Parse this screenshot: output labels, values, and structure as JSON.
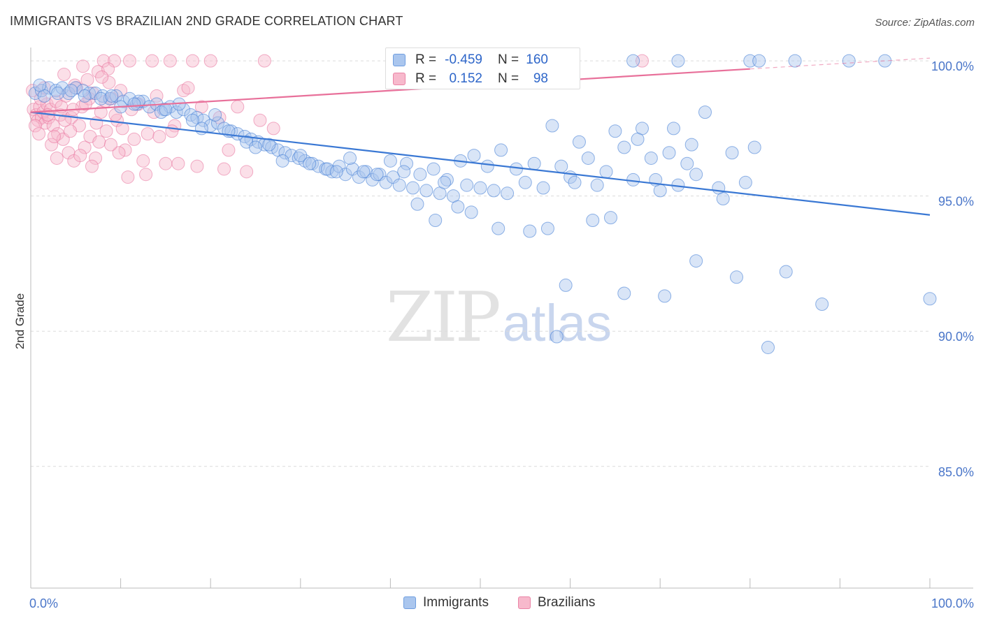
{
  "title": "IMMIGRANTS VS BRAZILIAN 2ND GRADE CORRELATION CHART",
  "source": "Source: ZipAtlas.com",
  "watermark": {
    "zip": "ZIP",
    "atlas": "atlas"
  },
  "legend": {
    "r_label": "R =",
    "n_label": "N =",
    "rows": [
      {
        "name": "Immigrants",
        "r": "-0.459",
        "n": "160",
        "fill": "#aac6ee",
        "stroke": "#6f9ee0"
      },
      {
        "name": "Brazilians",
        "r": "0.152",
        "n": "98",
        "fill": "#f7b9cc",
        "stroke": "#ea84a6"
      }
    ]
  },
  "chart_data": {
    "type": "scatter",
    "title": "IMMIGRANTS VS BRAZILIAN 2ND GRADE CORRELATION CHART",
    "xlabel": "",
    "ylabel": "2nd Grade",
    "xlim": [
      0,
      100
    ],
    "ylim": [
      80.5,
      100.7
    ],
    "x_tick_labels": [
      "0.0%",
      "100.0%"
    ],
    "y_ticks": [
      {
        "value": 100,
        "label": "100.0%"
      },
      {
        "value": 95,
        "label": "95.0%"
      },
      {
        "value": 90,
        "label": "90.0%"
      },
      {
        "value": 85,
        "label": "85.0%"
      }
    ],
    "grid": true,
    "series": [
      {
        "name": "Immigrants",
        "color": "#3a78d4",
        "fill": "#aac6ee",
        "trend": {
          "x": [
            0,
            100
          ],
          "y": [
            98.1,
            94.3
          ],
          "solid_to": 100
        },
        "points": [
          [
            0.5,
            98.8
          ],
          [
            1.2,
            98.9
          ],
          [
            2.0,
            99.0
          ],
          [
            2.8,
            98.9
          ],
          [
            3.5,
            99.0
          ],
          [
            4.2,
            98.8
          ],
          [
            5.0,
            99.0
          ],
          [
            5.8,
            98.9
          ],
          [
            6.5,
            98.8
          ],
          [
            7.2,
            98.8
          ],
          [
            8.0,
            98.7
          ],
          [
            8.8,
            98.6
          ],
          [
            9.5,
            98.7
          ],
          [
            10.3,
            98.5
          ],
          [
            11.0,
            98.6
          ],
          [
            11.8,
            98.4
          ],
          [
            12.5,
            98.5
          ],
          [
            13.2,
            98.3
          ],
          [
            14.0,
            98.4
          ],
          [
            14.8,
            98.2
          ],
          [
            15.5,
            98.3
          ],
          [
            16.2,
            98.1
          ],
          [
            17.0,
            98.2
          ],
          [
            17.8,
            98.0
          ],
          [
            18.5,
            97.9
          ],
          [
            19.2,
            97.8
          ],
          [
            20.0,
            97.6
          ],
          [
            20.8,
            97.7
          ],
          [
            21.5,
            97.5
          ],
          [
            22.3,
            97.4
          ],
          [
            23.0,
            97.3
          ],
          [
            23.8,
            97.2
          ],
          [
            24.5,
            97.1
          ],
          [
            25.3,
            97.0
          ],
          [
            26.0,
            96.9
          ],
          [
            26.8,
            96.8
          ],
          [
            27.5,
            96.7
          ],
          [
            28.3,
            96.6
          ],
          [
            29.0,
            96.5
          ],
          [
            29.8,
            96.4
          ],
          [
            30.5,
            96.3
          ],
          [
            31.3,
            96.2
          ],
          [
            32.0,
            96.1
          ],
          [
            32.8,
            96.0
          ],
          [
            33.5,
            95.9
          ],
          [
            34.3,
            96.1
          ],
          [
            35.0,
            95.8
          ],
          [
            35.8,
            96.0
          ],
          [
            36.5,
            95.7
          ],
          [
            37.3,
            95.9
          ],
          [
            38.0,
            95.6
          ],
          [
            38.8,
            95.8
          ],
          [
            39.5,
            95.5
          ],
          [
            40.3,
            95.7
          ],
          [
            41.0,
            95.4
          ],
          [
            41.8,
            96.2
          ],
          [
            42.5,
            95.3
          ],
          [
            43.3,
            95.8
          ],
          [
            44.0,
            95.2
          ],
          [
            44.8,
            96.0
          ],
          [
            45.5,
            95.1
          ],
          [
            46.3,
            95.6
          ],
          [
            47.0,
            95.0
          ],
          [
            47.8,
            96.3
          ],
          [
            48.5,
            95.4
          ],
          [
            49.3,
            96.5
          ],
          [
            50.0,
            95.3
          ],
          [
            50.8,
            96.1
          ],
          [
            51.5,
            95.2
          ],
          [
            52.3,
            96.7
          ],
          [
            53.0,
            95.1
          ],
          [
            54.0,
            96.0
          ],
          [
            55.0,
            95.5
          ],
          [
            56.0,
            96.2
          ],
          [
            57.0,
            95.3
          ],
          [
            58.0,
            97.6
          ],
          [
            59.0,
            96.1
          ],
          [
            60.0,
            95.7
          ],
          [
            61.0,
            97.0
          ],
          [
            62.0,
            96.4
          ],
          [
            63.0,
            95.4
          ],
          [
            64.0,
            95.9
          ],
          [
            65.0,
            97.4
          ],
          [
            66.0,
            96.8
          ],
          [
            67.0,
            95.6
          ],
          [
            68.0,
            97.5
          ],
          [
            69.0,
            96.4
          ],
          [
            70.0,
            95.2
          ],
          [
            71.0,
            96.6
          ],
          [
            72.0,
            95.4
          ],
          [
            73.0,
            96.2
          ],
          [
            74.0,
            95.8
          ],
          [
            6.0,
            98.7
          ],
          [
            10.0,
            98.3
          ],
          [
            14.5,
            98.1
          ],
          [
            19.0,
            97.5
          ],
          [
            24.0,
            97.0
          ],
          [
            28.0,
            96.3
          ],
          [
            33.0,
            96.0
          ],
          [
            37.0,
            95.9
          ],
          [
            1.5,
            98.7
          ],
          [
            4.5,
            98.9
          ],
          [
            7.8,
            98.6
          ],
          [
            12.0,
            98.5
          ],
          [
            16.5,
            98.4
          ],
          [
            20.5,
            98.0
          ],
          [
            25.0,
            96.8
          ],
          [
            30.0,
            96.5
          ],
          [
            35.5,
            96.4
          ],
          [
            40.0,
            96.3
          ],
          [
            43.0,
            94.7
          ],
          [
            45.0,
            94.1
          ],
          [
            47.5,
            94.6
          ],
          [
            49.0,
            94.4
          ],
          [
            52.0,
            93.8
          ],
          [
            55.5,
            93.7
          ],
          [
            57.5,
            93.8
          ],
          [
            60.5,
            95.5
          ],
          [
            62.5,
            94.1
          ],
          [
            64.5,
            94.2
          ],
          [
            67.5,
            97.1
          ],
          [
            69.5,
            95.6
          ],
          [
            71.5,
            97.5
          ],
          [
            73.5,
            96.9
          ],
          [
            75.0,
            98.1
          ],
          [
            76.5,
            95.3
          ],
          [
            77.0,
            94.9
          ],
          [
            78.0,
            96.6
          ],
          [
            79.5,
            95.5
          ],
          [
            80.5,
            96.8
          ],
          [
            67.0,
            100.0
          ],
          [
            72.0,
            100.0
          ],
          [
            80.0,
            100.0
          ],
          [
            81.0,
            100.0
          ],
          [
            85.0,
            100.0
          ],
          [
            91.0,
            100.0
          ],
          [
            95.0,
            100.0
          ],
          [
            58.5,
            89.8
          ],
          [
            59.5,
            91.7
          ],
          [
            66.0,
            91.4
          ],
          [
            70.5,
            91.3
          ],
          [
            88.0,
            91.0
          ],
          [
            100.0,
            91.2
          ],
          [
            78.5,
            92.0
          ],
          [
            74.0,
            92.6
          ],
          [
            84.0,
            92.2
          ],
          [
            82.0,
            89.4
          ],
          [
            1.0,
            99.1
          ],
          [
            3.0,
            98.8
          ],
          [
            9.0,
            98.7
          ],
          [
            11.5,
            98.4
          ],
          [
            15.0,
            98.2
          ],
          [
            18.0,
            97.8
          ],
          [
            22.0,
            97.4
          ],
          [
            26.5,
            96.9
          ],
          [
            31.0,
            96.2
          ],
          [
            34.0,
            95.9
          ],
          [
            38.5,
            95.8
          ],
          [
            41.5,
            95.9
          ],
          [
            46.0,
            95.5
          ]
        ]
      },
      {
        "name": "Brazilians",
        "color": "#e8709a",
        "fill": "#f7b9cc",
        "trend": {
          "x": [
            0,
            100
          ],
          "y": [
            98.1,
            100.1
          ],
          "solid_to": 80
        },
        "points": [
          [
            0.3,
            98.2
          ],
          [
            0.6,
            98.0
          ],
          [
            0.8,
            97.8
          ],
          [
            1.0,
            98.3
          ],
          [
            1.2,
            97.9
          ],
          [
            1.4,
            98.1
          ],
          [
            1.6,
            97.7
          ],
          [
            1.8,
            98.4
          ],
          [
            2.0,
            97.9
          ],
          [
            2.2,
            98.2
          ],
          [
            2.5,
            97.6
          ],
          [
            2.8,
            98.5
          ],
          [
            3.0,
            97.3
          ],
          [
            3.3,
            98.0
          ],
          [
            3.6,
            97.1
          ],
          [
            3.9,
            98.7
          ],
          [
            4.2,
            96.6
          ],
          [
            4.5,
            97.9
          ],
          [
            4.8,
            96.3
          ],
          [
            5.1,
            99.0
          ],
          [
            5.4,
            97.6
          ],
          [
            5.7,
            98.3
          ],
          [
            6.0,
            96.8
          ],
          [
            6.3,
            99.3
          ],
          [
            6.6,
            97.2
          ],
          [
            6.9,
            98.8
          ],
          [
            7.2,
            96.4
          ],
          [
            7.5,
            99.6
          ],
          [
            7.8,
            98.1
          ],
          [
            8.1,
            100.0
          ],
          [
            8.4,
            97.4
          ],
          [
            8.7,
            99.2
          ],
          [
            9.0,
            98.6
          ],
          [
            9.3,
            100.0
          ],
          [
            9.6,
            97.8
          ],
          [
            10.0,
            98.9
          ],
          [
            10.5,
            96.7
          ],
          [
            11.0,
            100.0
          ],
          [
            11.5,
            97.1
          ],
          [
            12.0,
            98.4
          ],
          [
            12.5,
            96.3
          ],
          [
            13.0,
            97.3
          ],
          [
            13.5,
            100.0
          ],
          [
            14.0,
            98.7
          ],
          [
            15.0,
            96.2
          ],
          [
            15.5,
            100.0
          ],
          [
            16.0,
            97.6
          ],
          [
            17.0,
            98.9
          ],
          [
            18.0,
            100.0
          ],
          [
            18.5,
            96.1
          ],
          [
            20.0,
            100.0
          ],
          [
            21.0,
            97.9
          ],
          [
            22.0,
            96.7
          ],
          [
            23.0,
            98.3
          ],
          [
            26.0,
            100.0
          ],
          [
            27.0,
            97.5
          ],
          [
            1.1,
            98.6
          ],
          [
            2.3,
            96.9
          ],
          [
            3.4,
            98.3
          ],
          [
            4.4,
            97.4
          ],
          [
            5.5,
            96.5
          ],
          [
            6.5,
            98.6
          ],
          [
            7.6,
            97.0
          ],
          [
            8.6,
            99.7
          ],
          [
            9.8,
            96.6
          ],
          [
            11.2,
            98.2
          ],
          [
            12.8,
            95.8
          ],
          [
            14.3,
            97.2
          ],
          [
            16.4,
            96.2
          ],
          [
            17.5,
            99.0
          ],
          [
            0.5,
            97.6
          ],
          [
            1.5,
            99.0
          ],
          [
            2.6,
            97.2
          ],
          [
            3.7,
            99.5
          ],
          [
            4.7,
            98.2
          ],
          [
            5.8,
            99.8
          ],
          [
            6.8,
            96.1
          ],
          [
            7.9,
            99.4
          ],
          [
            8.9,
            96.9
          ],
          [
            10.2,
            97.5
          ],
          [
            0.2,
            98.9
          ],
          [
            0.9,
            97.3
          ],
          [
            1.9,
            98.0
          ],
          [
            2.9,
            96.4
          ],
          [
            3.8,
            97.8
          ],
          [
            4.9,
            99.1
          ],
          [
            6.1,
            98.4
          ],
          [
            7.3,
            97.7
          ],
          [
            8.3,
            98.5
          ],
          [
            9.4,
            98.0
          ],
          [
            68.0,
            100.0
          ],
          [
            10.8,
            95.7
          ],
          [
            13.7,
            98.1
          ],
          [
            15.7,
            97.4
          ],
          [
            19.0,
            98.3
          ],
          [
            21.5,
            96.0
          ],
          [
            24.0,
            95.9
          ],
          [
            25.5,
            97.8
          ]
        ]
      }
    ]
  }
}
